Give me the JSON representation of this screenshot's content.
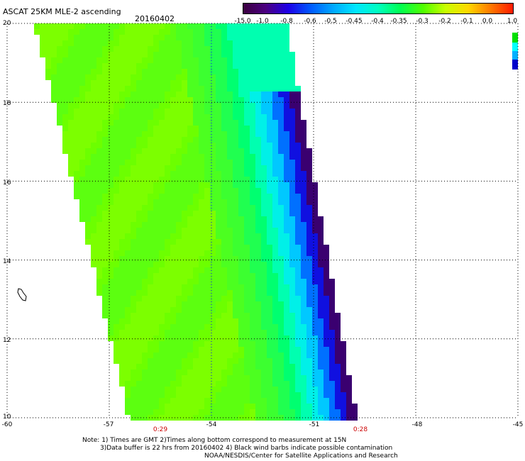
{
  "header": {
    "title": "ASCAT 25KM MLE-2 ascending",
    "date": "20160402"
  },
  "colorbar": {
    "labels": [
      "-15.0",
      "-1.0",
      "-0.8",
      "-0.6",
      "-0.5",
      "-0.45",
      "-0.4",
      "-0.35",
      "-0.3",
      "-0.2",
      "-0.1",
      "0.0",
      "1.0"
    ],
    "colors": [
      "#3b0040",
      "#4b0080",
      "#1d00e8",
      "#005aff",
      "#00a8ff",
      "#00e6ff",
      "#00ffc0",
      "#00ff50",
      "#50ff00",
      "#c8ff00",
      "#ffd800",
      "#ff7a00",
      "#ff1a00"
    ]
  },
  "map": {
    "lat_labels": [
      "20",
      "18",
      "16",
      "14",
      "12",
      "10"
    ],
    "lon_labels": [
      "-60",
      "-57",
      "-54",
      "-51",
      "-48",
      "-45"
    ],
    "pass_times": [
      "0:29",
      "0:28"
    ],
    "lat_range": [
      10,
      20
    ],
    "lon_range": [
      -60,
      -45
    ]
  },
  "notes": [
    "Note: 1) Times are GMT 2)Times along bottom correspond to measurement at 15N",
    "3)Data buffer is 22 hrs from 20160402 4) Black wind barbs indicate possible contamination",
    "NOAA/NESDIS/Center for Satellite Applications and Research"
  ]
}
